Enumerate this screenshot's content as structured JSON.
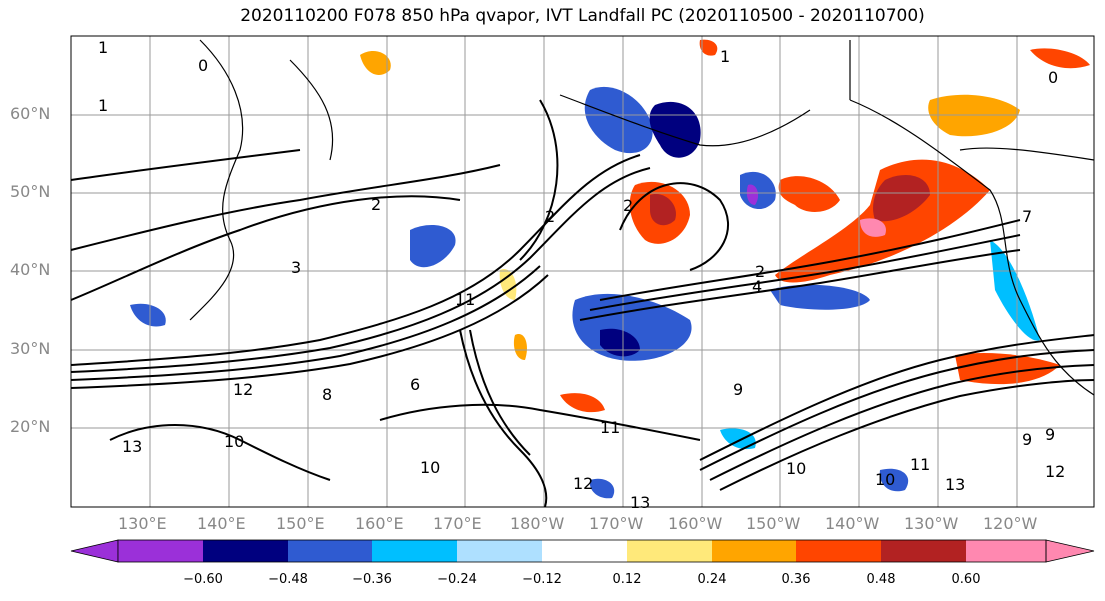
{
  "title": "2020110200 F078 850 hPa qvapor, IVT Landfall PC (2020110500 - 2020110700)",
  "lat_labels": [
    "60°N",
    "50°N",
    "40°N",
    "30°N",
    "20°N"
  ],
  "lon_labels": [
    "130°E",
    "140°E",
    "150°E",
    "160°E",
    "170°E",
    "180°W",
    "170°W",
    "160°W",
    "150°W",
    "140°W",
    "130°W",
    "120°W"
  ],
  "colorbar": {
    "ticks": [
      "−0.60",
      "−0.48",
      "−0.36",
      "−0.24",
      "−0.12",
      "0.12",
      "0.24",
      "0.36",
      "0.48",
      "0.60"
    ],
    "colors": [
      "#9b30d9",
      "#00007f",
      "#2f5bd1",
      "#00bfff",
      "#aee0ff",
      "#ffffff",
      "#ffe97a",
      "#ffa500",
      "#ff4500",
      "#b22222",
      "#ff88b0",
      "#ff88b0"
    ]
  },
  "contour_labels": [
    "1",
    "1",
    "0",
    "1",
    "0",
    "2",
    "3",
    "2",
    "2",
    "2",
    "4",
    "7",
    "6",
    "8",
    "9",
    "9",
    "10",
    "10",
    "10",
    "11",
    "12",
    "12",
    "13",
    "13",
    "10",
    "11",
    "9",
    "12",
    "11",
    "13"
  ]
}
